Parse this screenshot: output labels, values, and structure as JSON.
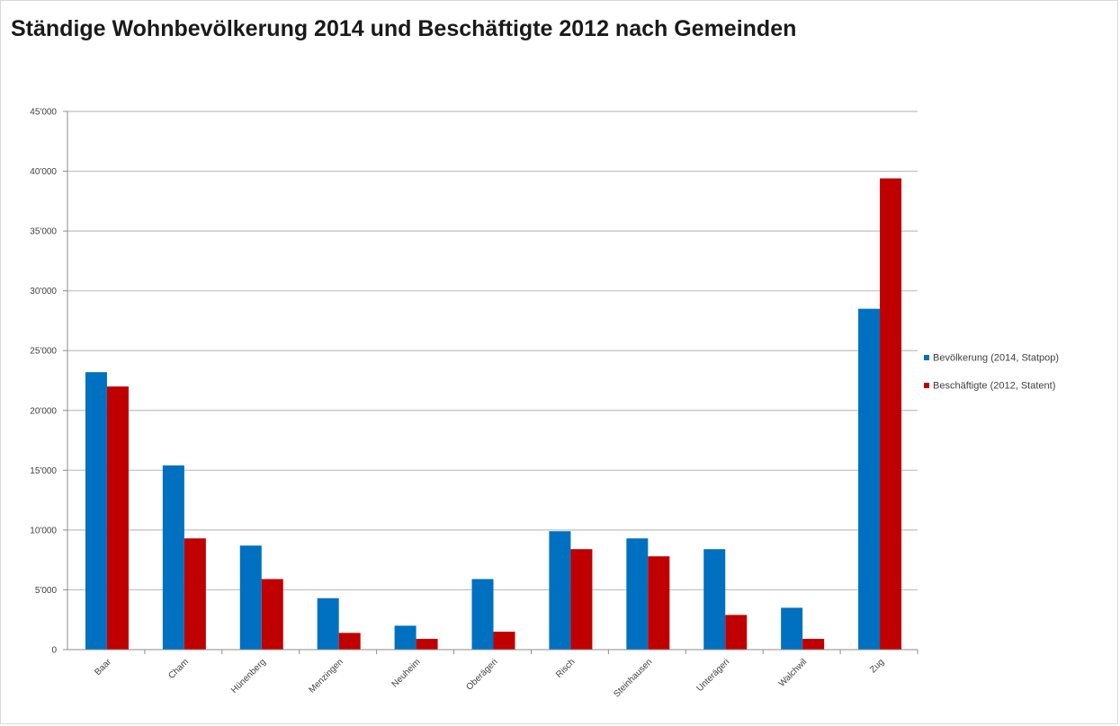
{
  "chart_data": {
    "type": "bar",
    "title": "Ständige Wohnbevölkerung 2014 und Beschäftigte 2012 nach Gemeinden",
    "xlabel": "",
    "ylabel": "",
    "ylim": [
      0,
      45000
    ],
    "yticks": [
      0,
      5000,
      10000,
      15000,
      20000,
      25000,
      30000,
      35000,
      40000,
      45000
    ],
    "ytick_labels": [
      "0",
      "5'000",
      "10'000",
      "15'000",
      "20'000",
      "25'000",
      "30'000",
      "35'000",
      "40'000",
      "45'000"
    ],
    "grid": true,
    "legend_position": "right",
    "categories": [
      "Baar",
      "Cham",
      "Hünenberg",
      "Menzingen",
      "Neuheim",
      "Oberägeri",
      "Risch",
      "Steinhausen",
      "Unterägeri",
      "Walchwil",
      "Zug"
    ],
    "series": [
      {
        "name": "Bevölkerung (2014, Statpop)",
        "color": "#0070c0",
        "values": [
          23200,
          15400,
          8700,
          4300,
          2000,
          5900,
          9900,
          9300,
          8400,
          3500,
          28500
        ]
      },
      {
        "name": "Beschäftigte (2012, Statent)",
        "color": "#c00000",
        "values": [
          22000,
          9300,
          5900,
          1400,
          900,
          1500,
          8400,
          7800,
          2900,
          900,
          39400
        ]
      }
    ]
  }
}
